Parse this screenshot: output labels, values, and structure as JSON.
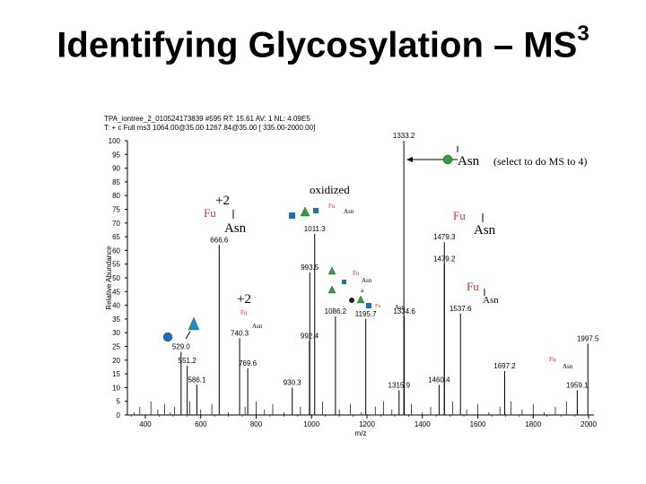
{
  "slide": {
    "title": "Identifying Glycosylation – MS",
    "title_superscript": "3"
  },
  "header": {
    "line1": "TPA_iontree_2_010524173839   #595  RT: 15.61  AV: 1  NL: 4.09E5",
    "line2": "T: + c Full ms3 1064.00@35.00 1267.84@35.00 [ 335.00-2000.00]"
  },
  "colors": {
    "glycan_fucose_label": "#cc3333",
    "hexnac_square": "#1f6fb5",
    "hexose_circle": "#2e9f3e",
    "fucose_triangle": "#2e9f3e",
    "deoxyhexose_triangle": "#1f8ec8",
    "spectrum_line": "#000000"
  },
  "annotations": {
    "asn_select": "Asn",
    "select_note": "(select to do MS to 4)",
    "oxidized": "oxidized",
    "charge_1": "+2",
    "charge_2": "+2",
    "fu_1": "Fu",
    "asn_1": "Asn",
    "fu_2": "Fu",
    "asn_2": "Asn",
    "fu_3": "Fu",
    "asn_3": "Asn",
    "fu_small_1": "Fu",
    "asn_small_1": "Asn",
    "fu_small_2": "Fu",
    "asn_small_2": "Asn",
    "fu_small_3": "Fu",
    "asn_small_3": "Asn",
    "fu_small_4": "Fu",
    "asn_small_4": "Asn",
    "asn_small_5": "Asn",
    "small_a": "a"
  },
  "chart_data": {
    "type": "bar",
    "xlabel": "m/z",
    "ylabel": "Relative Abundance",
    "xlim": [
      335,
      2000
    ],
    "ylim": [
      0,
      100
    ],
    "x_ticks": [
      400,
      600,
      800,
      1000,
      1200,
      1400,
      1600,
      1800,
      2000
    ],
    "y_ticks": [
      0,
      5,
      10,
      15,
      20,
      25,
      30,
      35,
      40,
      45,
      50,
      55,
      60,
      65,
      70,
      75,
      80,
      85,
      90,
      95,
      100
    ],
    "peaks": [
      {
        "mz": 1333.2,
        "rel": 100,
        "label": "1333.2"
      },
      {
        "mz": 1011.3,
        "rel": 66,
        "label": "1011.3"
      },
      {
        "mz": 1479.3,
        "rel": 63,
        "label": "1479.3"
      },
      {
        "mz": 666.6,
        "rel": 62,
        "label": "666.6"
      },
      {
        "mz": 1479.2,
        "rel": 55,
        "label": "1479.2"
      },
      {
        "mz": 993.5,
        "rel": 52,
        "label": "993.5"
      },
      {
        "mz": 1086.2,
        "rel": 36,
        "label": "1086.2"
      },
      {
        "mz": 1195.7,
        "rel": 35,
        "label": "1195.7"
      },
      {
        "mz": 1334.6,
        "rel": 36,
        "label": "1334.6"
      },
      {
        "mz": 1537.6,
        "rel": 37,
        "label": "1537.6"
      },
      {
        "mz": 740.3,
        "rel": 28,
        "label": "740.3"
      },
      {
        "mz": 992.4,
        "rel": 27,
        "label": "992.4"
      },
      {
        "mz": 1997.5,
        "rel": 26,
        "label": "1997.5"
      },
      {
        "mz": 529.0,
        "rel": 23,
        "label": "529.0"
      },
      {
        "mz": 551.2,
        "rel": 18,
        "label": "551.2"
      },
      {
        "mz": 769.6,
        "rel": 17,
        "label": "769.6"
      },
      {
        "mz": 1697.2,
        "rel": 16,
        "label": "1697.2"
      },
      {
        "mz": 586.1,
        "rel": 11,
        "label": "586.1"
      },
      {
        "mz": 930.3,
        "rel": 10,
        "label": "930.3"
      },
      {
        "mz": 1460.4,
        "rel": 11,
        "label": "1460.4"
      },
      {
        "mz": 1315.9,
        "rel": 9,
        "label": "1315.9"
      },
      {
        "mz": 1959.1,
        "rel": 9,
        "label": "1959.1"
      }
    ]
  }
}
